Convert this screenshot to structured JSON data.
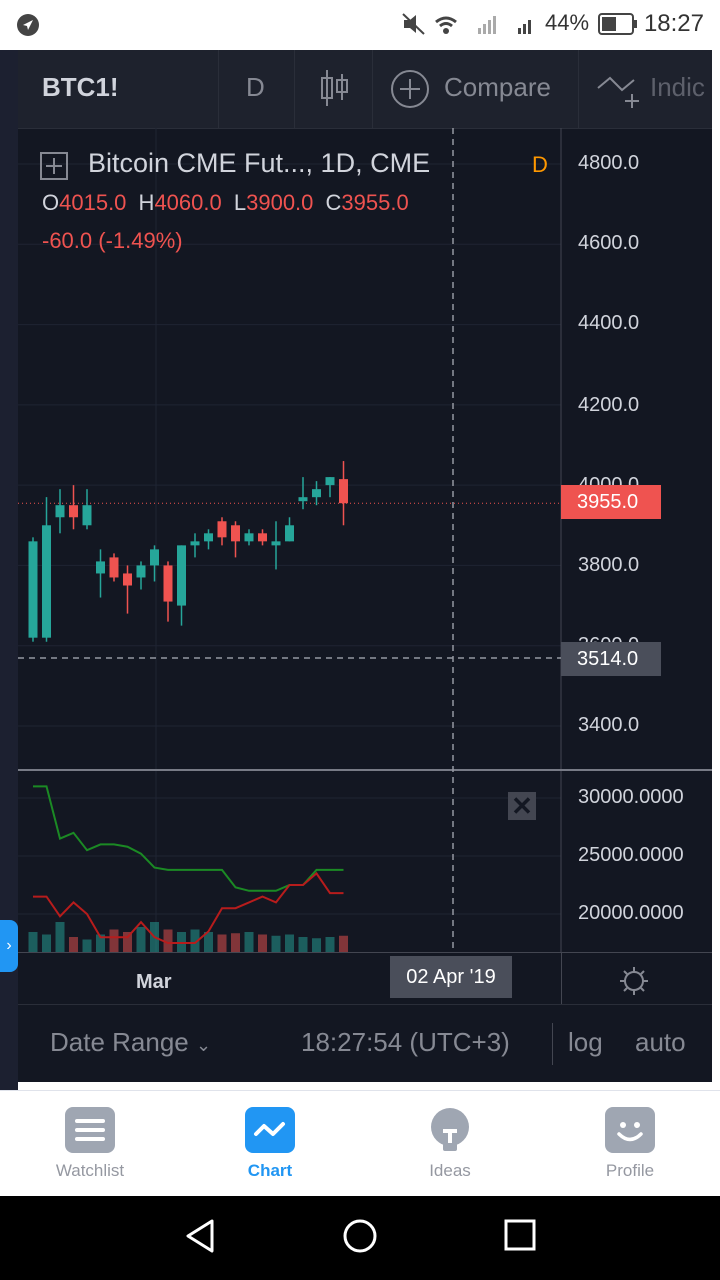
{
  "status_bar": {
    "battery_percent": "44%",
    "time": "18:27"
  },
  "toolbar": {
    "symbol": "BTC1!",
    "interval": "D",
    "compare_label": "Compare",
    "indicators_label": "Indic"
  },
  "legend": {
    "title": "Bitcoin CME Fut..., 1D, CME",
    "flag": "D",
    "open_label": "O",
    "open": "4015.0",
    "high_label": "H",
    "high": "4060.0",
    "low_label": "L",
    "low": "3900.0",
    "close_label": "C",
    "close": "3955.0",
    "change": "-60.0 (-1.49%)"
  },
  "price_axis": {
    "ticks": [
      "4800.0",
      "4600.0",
      "4400.0",
      "4200.0",
      "4000.0",
      "3800.0",
      "3600.0",
      "3400.0"
    ],
    "last_price": "3955.0",
    "crosshair_price": "3514.0"
  },
  "volume_axis": {
    "ticks": [
      "30000.0000",
      "25000.0000",
      "20000.0000"
    ]
  },
  "time_axis": {
    "month_label": "Mar",
    "crosshair_date": "02 Apr '19"
  },
  "footer": {
    "date_range": "Date Range",
    "clock": "18:27:54 (UTC+3)",
    "log": "log",
    "auto": "auto"
  },
  "nav": {
    "items": [
      {
        "label": "Watchlist"
      },
      {
        "label": "Chart"
      },
      {
        "label": "Ideas"
      },
      {
        "label": "Profile"
      }
    ]
  },
  "colors": {
    "up": "#26a69a",
    "down": "#ef5350",
    "bg": "#131722",
    "accent": "#2196f3"
  },
  "chart_data": {
    "type": "candlestick",
    "symbol": "BTC1!",
    "candles": [
      {
        "o": 3620,
        "h": 3870,
        "l": 3610,
        "c": 3860
      },
      {
        "o": 3620,
        "h": 3970,
        "l": 3610,
        "c": 3900
      },
      {
        "o": 3920,
        "h": 3990,
        "l": 3880,
        "c": 3950
      },
      {
        "o": 3950,
        "h": 4000,
        "l": 3890,
        "c": 3920
      },
      {
        "o": 3900,
        "h": 3990,
        "l": 3890,
        "c": 3950
      },
      {
        "o": 3780,
        "h": 3840,
        "l": 3720,
        "c": 3810
      },
      {
        "o": 3820,
        "h": 3830,
        "l": 3760,
        "c": 3770
      },
      {
        "o": 3780,
        "h": 3800,
        "l": 3680,
        "c": 3750
      },
      {
        "o": 3770,
        "h": 3810,
        "l": 3740,
        "c": 3800
      },
      {
        "o": 3800,
        "h": 3850,
        "l": 3760,
        "c": 3840
      },
      {
        "o": 3800,
        "h": 3810,
        "l": 3660,
        "c": 3710
      },
      {
        "o": 3700,
        "h": 3850,
        "l": 3650,
        "c": 3850
      },
      {
        "o": 3850,
        "h": 3880,
        "l": 3820,
        "c": 3860
      },
      {
        "o": 3860,
        "h": 3890,
        "l": 3840,
        "c": 3880
      },
      {
        "o": 3910,
        "h": 3920,
        "l": 3850,
        "c": 3870
      },
      {
        "o": 3900,
        "h": 3910,
        "l": 3820,
        "c": 3860
      },
      {
        "o": 3860,
        "h": 3890,
        "l": 3850,
        "c": 3880
      },
      {
        "o": 3880,
        "h": 3890,
        "l": 3850,
        "c": 3860
      },
      {
        "o": 3850,
        "h": 3910,
        "l": 3790,
        "c": 3860
      },
      {
        "o": 3860,
        "h": 3920,
        "l": 3860,
        "c": 3900
      },
      {
        "o": 3960,
        "h": 4020,
        "l": 3940,
        "c": 3970
      },
      {
        "o": 3970,
        "h": 4010,
        "l": 3950,
        "c": 3990
      },
      {
        "o": 4000,
        "h": 4020,
        "l": 3970,
        "c": 4020
      },
      {
        "o": 4015,
        "h": 4060,
        "l": 3900,
        "c": 3955
      }
    ],
    "volume": [
      8000,
      7000,
      12000,
      6000,
      5000,
      7000,
      9000,
      8000,
      10000,
      12000,
      9000,
      8000,
      9000,
      8000,
      7000,
      7500,
      8000,
      7000,
      6500,
      7000,
      6000,
      5500,
      6000,
      6500
    ],
    "line_green": [
      31000,
      31000,
      26500,
      27000,
      25500,
      26000,
      26000,
      25800,
      25200,
      24000,
      23800,
      23800,
      23800,
      23800,
      23800,
      22300,
      22000,
      22000,
      22000,
      22500,
      22500,
      23800,
      23800,
      23800
    ],
    "line_red": [
      21500,
      21500,
      19800,
      21000,
      20000,
      18000,
      18000,
      18000,
      19300,
      18000,
      17500,
      17500,
      17500,
      18500,
      20500,
      20500,
      21000,
      21500,
      21000,
      22500,
      22500,
      23500,
      21800,
      21800
    ],
    "price_range": [
      3300,
      4900
    ],
    "volume_range": [
      16000,
      32000
    ]
  }
}
